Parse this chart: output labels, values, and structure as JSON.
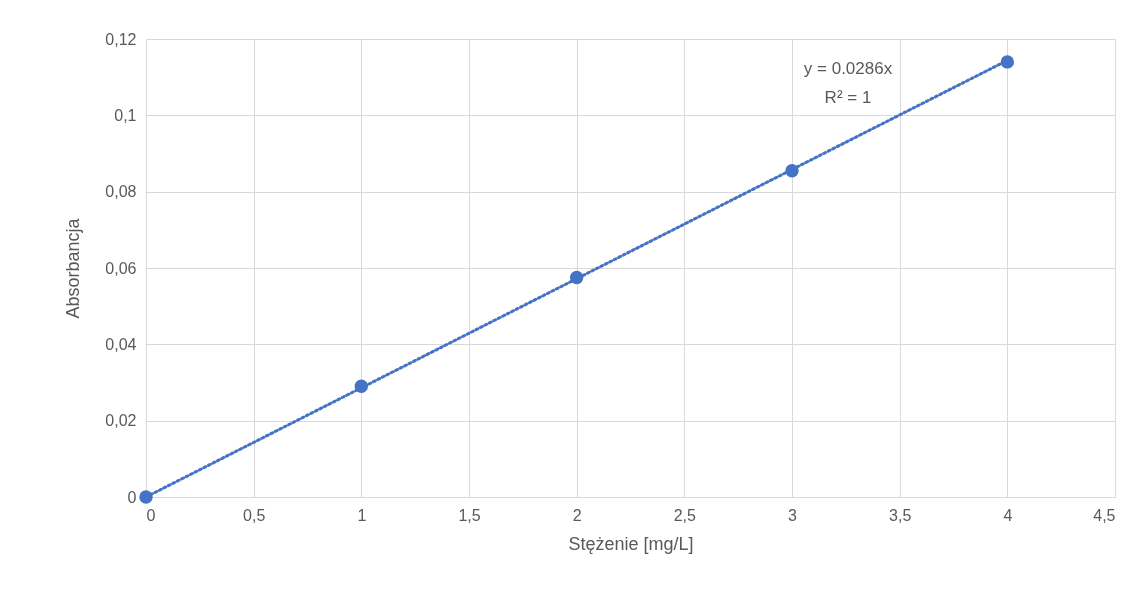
{
  "chart_data": {
    "type": "scatter",
    "xlabel": "Stężenie [mg/L]",
    "ylabel": "Absorbancja",
    "x": [
      0,
      1,
      2,
      3,
      4
    ],
    "series": [
      {
        "color": "#4472c4",
        "marker": "circle",
        "values": [
          0,
          0.029,
          0.0575,
          0.0855,
          0.114
        ]
      },
      {
        "type": "line",
        "color": "#4472c4",
        "line_style": "dotted",
        "x": [
          0,
          4
        ],
        "values": [
          0,
          0.1144
        ]
      }
    ],
    "xlim": [
      0,
      4.5
    ],
    "ylim": [
      0,
      0.12
    ],
    "xticks": [
      0,
      {
        "value": 0.5,
        "label": "0,5"
      },
      1,
      {
        "value": 1.5,
        "label": "1,5"
      },
      2,
      {
        "value": 2.5,
        "label": "2,5"
      },
      3,
      {
        "value": 3.5,
        "label": "3,5"
      },
      4,
      {
        "value": 4.5,
        "label": "4,5"
      }
    ],
    "yticks": [
      0,
      {
        "value": 0.02,
        "label": "0,02"
      },
      {
        "value": 0.04,
        "label": "0,04"
      },
      {
        "value": 0.06,
        "label": "0,06"
      },
      {
        "value": 0.08,
        "label": "0,08"
      },
      {
        "value": 0.1,
        "label": "0,1"
      },
      {
        "value": 0.12,
        "label": "0,12"
      }
    ],
    "grid": true,
    "annotations": [
      "y = 0.0286x",
      "R² = 1"
    ]
  }
}
